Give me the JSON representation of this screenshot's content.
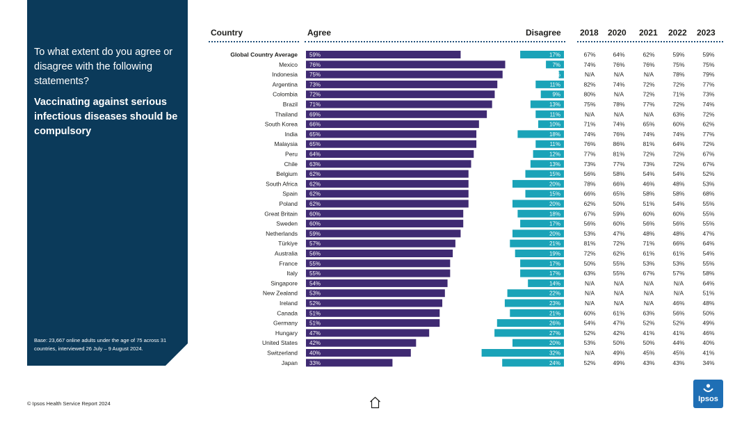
{
  "panel": {
    "question": "To what extent do you agree or disagree with the following statements?",
    "statement": "Vaccinating against serious infectious diseases should be compulsory",
    "base": "Base: 23,667 online adults under the age of 75 across 31 countries, interviewed 26 July – 9 August 2024."
  },
  "headers": {
    "country": "Country",
    "agree": "Agree",
    "disagree": "Disagree",
    "years": [
      "2018",
      "2020",
      "2021",
      "2022",
      "2023"
    ]
  },
  "footer": "© Ipsos Health Service Report 2024",
  "logo_text": "Ipsos",
  "colors": {
    "panel": "#0b3a5a",
    "agree": "#3f2a72",
    "disagree": "#1aa3b8",
    "logo": "#1f6fb5"
  },
  "icons": {
    "home": "home-icon",
    "logo": "ipsos-logo"
  },
  "chart_data": {
    "type": "bar",
    "categories": [
      "Global Country Average",
      "Mexico",
      "Indonesia",
      "Argentina",
      "Colombia",
      "Brazil",
      "Thailand",
      "South Korea",
      "India",
      "Malaysia",
      "Peru",
      "Chile",
      "Belgium",
      "South Africa",
      "Spain",
      "Poland",
      "Great Britain",
      "Sweden",
      "Netherlands",
      "Türkiye",
      "Australia",
      "France",
      "Italy",
      "Singapore",
      "New Zealand",
      "Ireland",
      "Canada",
      "Germany",
      "Hungary",
      "United States",
      "Switzerland",
      "Japan"
    ],
    "series": [
      {
        "name": "Agree",
        "values": [
          59,
          76,
          75,
          73,
          72,
          71,
          69,
          66,
          65,
          65,
          64,
          63,
          62,
          62,
          62,
          62,
          60,
          60,
          59,
          57,
          56,
          55,
          55,
          54,
          53,
          52,
          51,
          51,
          47,
          42,
          40,
          33
        ],
        "unit": "%"
      },
      {
        "name": "Disagree",
        "values": [
          17,
          7,
          2,
          11,
          9,
          13,
          11,
          10,
          18,
          11,
          12,
          13,
          15,
          20,
          15,
          20,
          18,
          17,
          20,
          21,
          19,
          17,
          17,
          14,
          22,
          23,
          21,
          26,
          27,
          20,
          32,
          24
        ],
        "unit": "%"
      }
    ],
    "trend_columns": [
      "2018",
      "2020",
      "2021",
      "2022",
      "2023"
    ],
    "trend_values": [
      [
        "67%",
        "64%",
        "62%",
        "59%",
        "59%"
      ],
      [
        "74%",
        "76%",
        "76%",
        "75%",
        "75%"
      ],
      [
        "N/A",
        "N/A",
        "N/A",
        "78%",
        "79%"
      ],
      [
        "82%",
        "74%",
        "72%",
        "72%",
        "77%"
      ],
      [
        "80%",
        "N/A",
        "72%",
        "71%",
        "73%"
      ],
      [
        "75%",
        "78%",
        "77%",
        "72%",
        "74%"
      ],
      [
        "N/A",
        "N/A",
        "N/A",
        "63%",
        "72%"
      ],
      [
        "71%",
        "74%",
        "65%",
        "60%",
        "62%"
      ],
      [
        "74%",
        "76%",
        "74%",
        "74%",
        "77%"
      ],
      [
        "76%",
        "86%",
        "81%",
        "64%",
        "72%"
      ],
      [
        "77%",
        "81%",
        "72%",
        "72%",
        "67%"
      ],
      [
        "73%",
        "77%",
        "73%",
        "72%",
        "67%"
      ],
      [
        "56%",
        "58%",
        "54%",
        "54%",
        "52%"
      ],
      [
        "78%",
        "66%",
        "46%",
        "48%",
        "53%"
      ],
      [
        "66%",
        "65%",
        "58%",
        "58%",
        "68%"
      ],
      [
        "62%",
        "50%",
        "51%",
        "54%",
        "55%"
      ],
      [
        "67%",
        "59%",
        "60%",
        "60%",
        "55%"
      ],
      [
        "56%",
        "60%",
        "56%",
        "56%",
        "55%"
      ],
      [
        "53%",
        "47%",
        "48%",
        "48%",
        "47%"
      ],
      [
        "81%",
        "72%",
        "71%",
        "66%",
        "64%"
      ],
      [
        "72%",
        "62%",
        "61%",
        "61%",
        "54%"
      ],
      [
        "50%",
        "55%",
        "53%",
        "53%",
        "55%"
      ],
      [
        "63%",
        "55%",
        "67%",
        "57%",
        "58%"
      ],
      [
        "N/A",
        "N/A",
        "N/A",
        "N/A",
        "64%"
      ],
      [
        "N/A",
        "N/A",
        "N/A",
        "N/A",
        "51%"
      ],
      [
        "N/A",
        "N/A",
        "N/A",
        "46%",
        "48%"
      ],
      [
        "60%",
        "61%",
        "63%",
        "56%",
        "50%"
      ],
      [
        "54%",
        "47%",
        "52%",
        "52%",
        "49%"
      ],
      [
        "52%",
        "42%",
        "41%",
        "41%",
        "46%"
      ],
      [
        "53%",
        "50%",
        "50%",
        "44%",
        "40%"
      ],
      [
        "N/A",
        "49%",
        "45%",
        "45%",
        "41%"
      ],
      [
        "52%",
        "49%",
        "43%",
        "43%",
        "34%"
      ]
    ],
    "xlim": [
      0,
      100
    ]
  }
}
